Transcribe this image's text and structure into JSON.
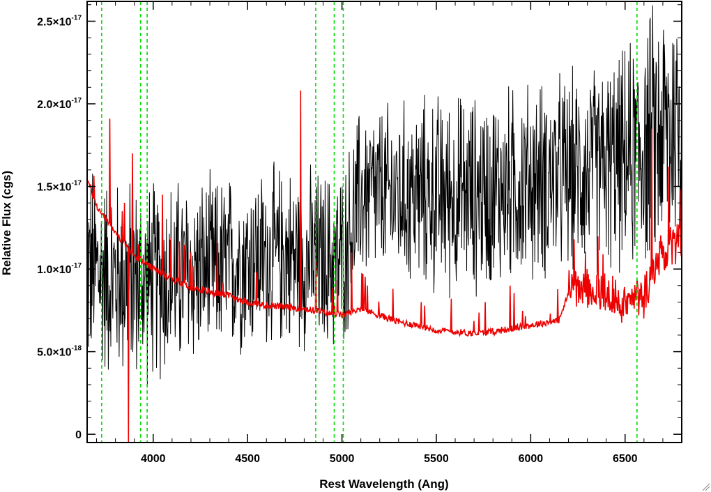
{
  "chart_data": {
    "type": "line",
    "xlabel": "Rest Wavelength (Ang)",
    "ylabel": "Relative Flux (cgs)",
    "xlim": [
      3650,
      6800
    ],
    "ylim": [
      -5e-19,
      2.62e-17
    ],
    "x_ticks": [
      {
        "value": 4000,
        "label": "4000"
      },
      {
        "value": 4500,
        "label": "4500"
      },
      {
        "value": 5000,
        "label": "5000"
      },
      {
        "value": 5500,
        "label": "5500"
      },
      {
        "value": 6000,
        "label": "6000"
      },
      {
        "value": 6500,
        "label": "6500"
      }
    ],
    "y_ticks": [
      {
        "value": 0,
        "mant": "0",
        "exp": ""
      },
      {
        "value": 5e-18,
        "mant": "5.0×10",
        "exp": "-18"
      },
      {
        "value": 1e-17,
        "mant": "1.0×10",
        "exp": "-17"
      },
      {
        "value": 1.5e-17,
        "mant": "1.5×10",
        "exp": "-17"
      },
      {
        "value": 2e-17,
        "mant": "2.0×10",
        "exp": "-17"
      },
      {
        "value": 2.5e-17,
        "mant": "2.5×10",
        "exp": "-17"
      }
    ],
    "vertical_markers": [
      3727,
      3933,
      3968,
      4861,
      4959,
      5007,
      6563
    ],
    "model_continuum": {
      "x": [
        3650,
        3700,
        3750,
        3800,
        3850,
        3900,
        4000,
        4100,
        4200,
        4300,
        4400,
        4500,
        4600,
        4700,
        4800,
        4900,
        5000,
        5100,
        5200,
        5300,
        5400,
        5500,
        5600,
        5700,
        5800,
        5900,
        6000,
        6100,
        6150,
        6200,
        6300,
        6400,
        6500,
        6600,
        6700,
        6800
      ],
      "y": [
        1.55e-17,
        1.38e-17,
        1.3e-17,
        1.22e-17,
        1.15e-17,
        1.08e-17,
        1e-17,
        9.4e-18,
        8.9e-18,
        8.6e-18,
        8.4e-18,
        8e-18,
        7.8e-18,
        7.7e-18,
        7.6e-18,
        7.4e-18,
        7.2e-18,
        7.6e-18,
        7.2e-18,
        6.8e-18,
        6.6e-18,
        6.3e-18,
        6.2e-18,
        6.1e-18,
        6.2e-18,
        6.4e-18,
        6.6e-18,
        6.8e-18,
        6.9e-18,
        8.5e-18,
        8.2e-18,
        8e-18,
        7.5e-18,
        7.8e-18,
        1.05e-17,
        1.1e-17
      ]
    },
    "model_spikes": [
      {
        "x": 3770,
        "y": 1.91e-17
      },
      {
        "x": 3835,
        "y": 1.35e-17
      },
      {
        "x": 3870,
        "y": -5e-19
      },
      {
        "x": 3890,
        "y": 1.7e-17
      },
      {
        "x": 4050,
        "y": 1.45e-17
      },
      {
        "x": 4200,
        "y": 1.1e-17
      },
      {
        "x": 4340,
        "y": 1.18e-17
      },
      {
        "x": 4780,
        "y": 2.08e-17
      },
      {
        "x": 4861,
        "y": 1.05e-17
      },
      {
        "x": 5050,
        "y": 1.1e-17
      },
      {
        "x": 5270,
        "y": 8.8e-18
      },
      {
        "x": 5420,
        "y": 8e-18
      },
      {
        "x": 5580,
        "y": 8.2e-18
      },
      {
        "x": 5760,
        "y": 8e-18
      },
      {
        "x": 5890,
        "y": 9e-18
      },
      {
        "x": 6230,
        "y": 1.18e-17
      },
      {
        "x": 6300,
        "y": 1e-17
      },
      {
        "x": 6640,
        "y": 1.85e-17
      },
      {
        "x": 6730,
        "y": 1.62e-17
      },
      {
        "x": 6790,
        "y": 1.48e-17
      }
    ],
    "observed_envelope": {
      "x": [
        3650,
        3800,
        3950,
        4100,
        4300,
        4500,
        4700,
        4900,
        5000,
        5100,
        5300,
        5500,
        5700,
        5900,
        6100,
        6300,
        6500,
        6650,
        6800
      ],
      "y": [
        1e-17,
        9.5e-18,
        9.2e-18,
        9.5e-18,
        1e-17,
        1.05e-17,
        1.08e-17,
        1.05e-17,
        1.05e-17,
        1.45e-17,
        1.45e-17,
        1.45e-17,
        1.45e-17,
        1.5e-17,
        1.55e-17,
        1.6e-17,
        1.65e-17,
        1.8e-17,
        1.9e-17
      ]
    },
    "observed_noise": [
      5.5e-18,
      5e-18,
      5e-18,
      5e-18,
      4.5e-18,
      4.5e-18,
      4.5e-18,
      4.5e-18,
      4.5e-18,
      4.5e-18,
      4.5e-18,
      5e-18,
      5e-18,
      5e-18,
      5e-18,
      5e-18,
      5.5e-18,
      6.5e-18,
      7e-18
    ],
    "colors": {
      "observed": "#000000",
      "model": "#ee0000",
      "markers": "#00dd00",
      "axis": "#000000",
      "background": "#ffffff"
    }
  }
}
